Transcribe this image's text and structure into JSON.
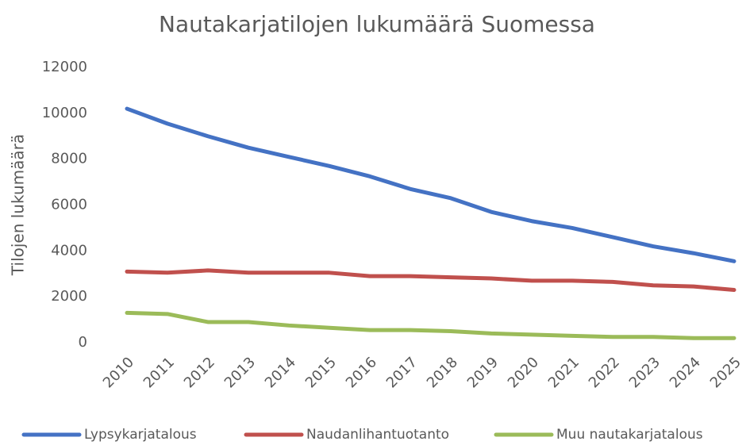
{
  "chart_data": {
    "type": "line",
    "title": "Nautakarjatilojen lukumäärä Suomessa",
    "y_label": "Tilojen lukumäärä",
    "categories": [
      "2010",
      "2011",
      "2012",
      "2013",
      "2014",
      "2015",
      "2016",
      "2017",
      "2018",
      "2019",
      "2020",
      "2021",
      "2022",
      "2023",
      "2024",
      "2025"
    ],
    "series": [
      {
        "name": "Lypsykarjatalous",
        "color": "#4472c4",
        "values": [
          10200,
          9550,
          9000,
          8500,
          8100,
          7700,
          7250,
          6700,
          6300,
          5700,
          5300,
          5000,
          4600,
          4200,
          3900,
          3550
        ]
      },
      {
        "name": "Naudanlihantuotanto",
        "color": "#c0504d",
        "values": [
          3100,
          3050,
          3150,
          3050,
          3050,
          3050,
          2900,
          2900,
          2850,
          2800,
          2700,
          2700,
          2650,
          2500,
          2450,
          2300
        ]
      },
      {
        "name": "Muu nautakarjatalous",
        "color": "#9bbb59",
        "values": [
          1300,
          1250,
          900,
          900,
          750,
          650,
          550,
          550,
          500,
          400,
          350,
          300,
          250,
          250,
          200,
          200
        ]
      }
    ],
    "ylim": [
      0,
      12000
    ],
    "yticks": [
      0,
      2000,
      4000,
      6000,
      8000,
      10000,
      12000
    ],
    "grid": false,
    "legend": "bottom"
  }
}
